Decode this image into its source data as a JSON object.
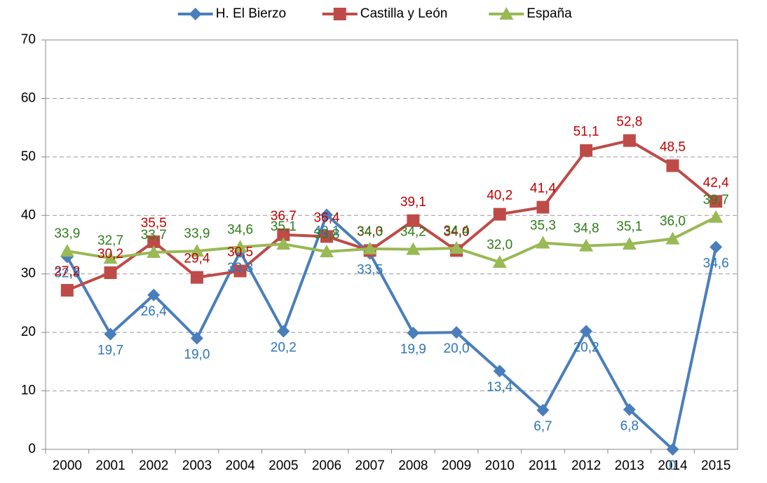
{
  "chart_data": {
    "type": "line",
    "categories": [
      "2000",
      "2001",
      "2002",
      "2003",
      "2004",
      "2005",
      "2006",
      "2007",
      "2008",
      "2009",
      "2010",
      "2011",
      "2012",
      "2013",
      "2014",
      "2015"
    ],
    "series": [
      {
        "name": "H. El Bierzo",
        "color": "#4a7ebb",
        "label_color": "#2e75b6",
        "marker": "diamond",
        "values": [
          32.9,
          19.7,
          26.4,
          19.0,
          33.8,
          20.2,
          40.1,
          33.5,
          19.9,
          20.0,
          13.4,
          6.7,
          20.2,
          6.8,
          0,
          34.6
        ],
        "value_labels": [
          "32,9",
          "19,7",
          "26,4",
          "19,0",
          "33,8",
          "20,2",
          "40,1",
          "33,5",
          "19,9",
          "20,0",
          "13,4",
          "6,7",
          "20,2",
          "6,8",
          "0",
          "34,6"
        ]
      },
      {
        "name": "Castilla y León",
        "color": "#be4b48",
        "label_color": "#c00000",
        "marker": "square",
        "values": [
          27.2,
          30.2,
          35.5,
          29.4,
          30.5,
          36.7,
          36.4,
          34.0,
          39.1,
          34.0,
          40.2,
          41.4,
          51.1,
          52.8,
          48.5,
          42.4
        ],
        "value_labels": [
          "27,2",
          "30,2",
          "35,5",
          "29,4",
          "30,5",
          "36,7",
          "36,4",
          "34,0",
          "39,1",
          "34,0",
          "40,2",
          "41,4",
          "51,1",
          "52,8",
          "48,5",
          "42,4"
        ]
      },
      {
        "name": "España",
        "color": "#98b954",
        "label_color": "#2e7d1a",
        "marker": "triangle",
        "values": [
          33.9,
          32.7,
          33.7,
          33.9,
          34.6,
          35.1,
          33.8,
          34.3,
          34.2,
          34.4,
          32.0,
          35.3,
          34.8,
          35.1,
          36.0,
          39.7
        ],
        "value_labels": [
          "33,9",
          "32,7",
          "33,7",
          "33,9",
          "34,6",
          "35,1",
          "33,8",
          "34,3",
          "34,2",
          "34,4",
          "32,0",
          "35,3",
          "34,8",
          "35,1",
          "36,0",
          "39,7"
        ]
      }
    ],
    "ylim": [
      0,
      70
    ],
    "yticks": [
      0,
      10,
      20,
      30,
      40,
      50,
      60,
      70
    ],
    "grid": true,
    "legend": "top"
  }
}
